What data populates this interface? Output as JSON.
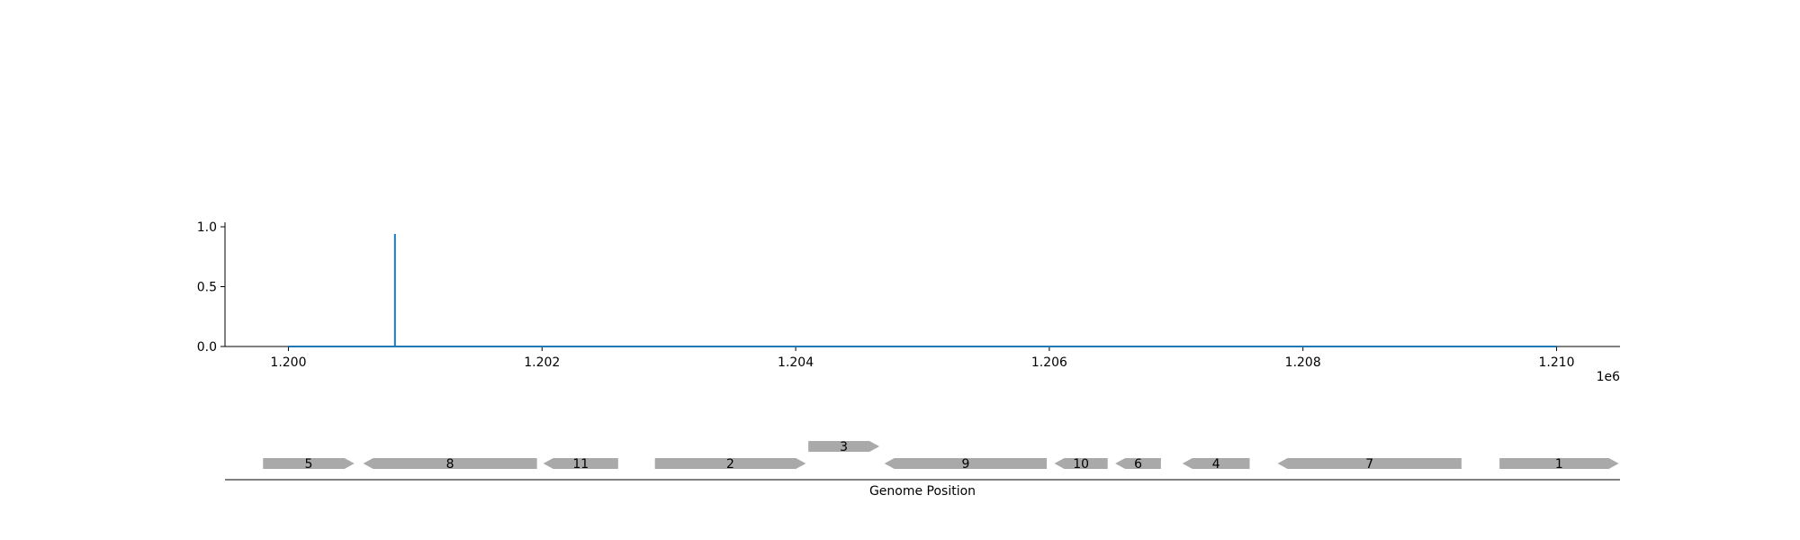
{
  "chart_data": {
    "type": "line",
    "title": "",
    "xlabel": "",
    "ylabel": "",
    "x_offset_label": "1e6",
    "xlim": [
      1199500,
      1210500
    ],
    "ylim": [
      0,
      1.0
    ],
    "x_ticks": [
      1200000,
      1202000,
      1204000,
      1206000,
      1208000,
      1210000
    ],
    "x_tick_labels": [
      "1.200",
      "1.202",
      "1.204",
      "1.206",
      "1.208",
      "1.210"
    ],
    "y_ticks": [
      0.0,
      0.5,
      1.0
    ],
    "y_tick_labels": [
      "0.0",
      "0.5",
      "1.0"
    ],
    "grid": false,
    "line_color": "#1f77b4",
    "series": [
      {
        "x": [
          1200000,
          1200840,
          1200840,
          1200840,
          1210000
        ],
        "y": [
          0,
          0,
          0.94,
          0,
          0
        ]
      }
    ],
    "gene_track": {
      "xlabel": "Genome Position",
      "color": "#a9a9a9",
      "genes": [
        {
          "label": "5",
          "start": 1199800,
          "end": 1200520,
          "strand": "+",
          "row": 0
        },
        {
          "label": "8",
          "start": 1200590,
          "end": 1201960,
          "strand": "-",
          "row": 0
        },
        {
          "label": "11",
          "start": 1202010,
          "end": 1202600,
          "strand": "-",
          "row": 0
        },
        {
          "label": "2",
          "start": 1202890,
          "end": 1204080,
          "strand": "+",
          "row": 0
        },
        {
          "label": "3",
          "start": 1204100,
          "end": 1204660,
          "strand": "+",
          "row": 1
        },
        {
          "label": "9",
          "start": 1204700,
          "end": 1205980,
          "strand": "-",
          "row": 0
        },
        {
          "label": "10",
          "start": 1206040,
          "end": 1206460,
          "strand": "-",
          "row": 0
        },
        {
          "label": "6",
          "start": 1206520,
          "end": 1206880,
          "strand": "-",
          "row": 0
        },
        {
          "label": "4",
          "start": 1207050,
          "end": 1207580,
          "strand": "-",
          "row": 0
        },
        {
          "label": "7",
          "start": 1207800,
          "end": 1209250,
          "strand": "-",
          "row": 0
        },
        {
          "label": "1",
          "start": 1209550,
          "end": 1210490,
          "strand": "+",
          "row": 0
        }
      ]
    }
  }
}
